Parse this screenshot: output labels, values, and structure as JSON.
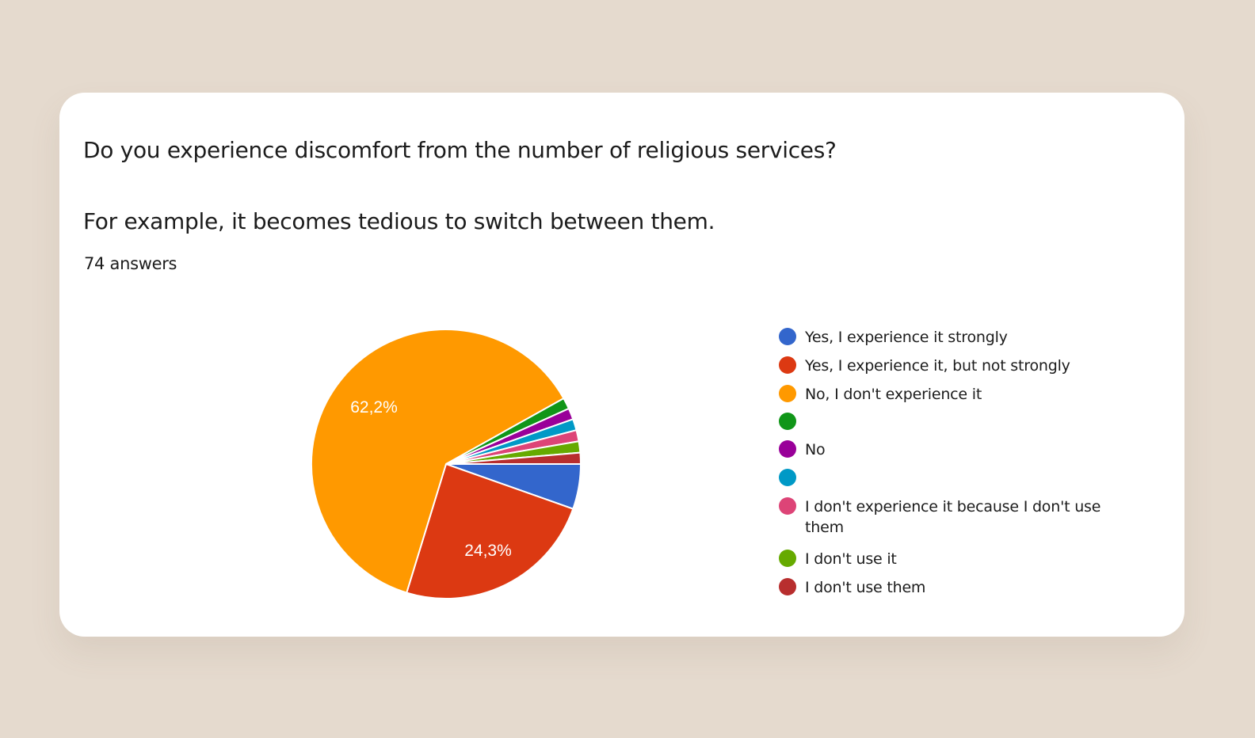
{
  "question": {
    "title": "Do you experience discomfort from the number of religious services?",
    "subtitle": "For example, it becomes tedious to switch between them.",
    "answers_count": "74 answers"
  },
  "legend": [
    {
      "label": "Yes, I experience it strongly",
      "color": "#3366cc"
    },
    {
      "label": "Yes, I experience it, but not strongly",
      "color": "#dc3912"
    },
    {
      "label": "No, I don't experience it",
      "color": "#ff9900"
    },
    {
      "label": "",
      "color": "#109618"
    },
    {
      "label": "No",
      "color": "#990099"
    },
    {
      "label": "",
      "color": "#0099c6"
    },
    {
      "label": "I don't experience it because I don't use them",
      "color": "#dd4477"
    },
    {
      "label": "I don't use it",
      "color": "#66aa00"
    },
    {
      "label": "I don't use them",
      "color": "#b82e2e"
    }
  ],
  "pie_labels": {
    "orange": "62,2%",
    "red": "24,3%"
  },
  "chart_data": {
    "type": "pie",
    "title": "Do you experience discomfort from the number of religious services? For example, it becomes tedious to switch between them.",
    "subtitle": "74 answers",
    "total": 74,
    "categories": [
      "Yes, I experience it strongly",
      "Yes, I experience it, but not strongly",
      "No, I don't experience it",
      "",
      "No",
      "",
      "I don't experience it because I don't use them",
      "I don't use it",
      "I don't use them"
    ],
    "values": [
      4,
      18,
      46,
      1,
      1,
      1,
      1,
      1,
      1
    ],
    "percentages": [
      5.4,
      24.3,
      62.2,
      1.4,
      1.4,
      1.4,
      1.4,
      1.4,
      1.4
    ],
    "colors": [
      "#3366cc",
      "#dc3912",
      "#ff9900",
      "#109618",
      "#990099",
      "#0099c6",
      "#dd4477",
      "#66aa00",
      "#b82e2e"
    ],
    "slice_labels_shown": [
      "62,2%",
      "24,3%"
    ],
    "legend_position": "right"
  }
}
